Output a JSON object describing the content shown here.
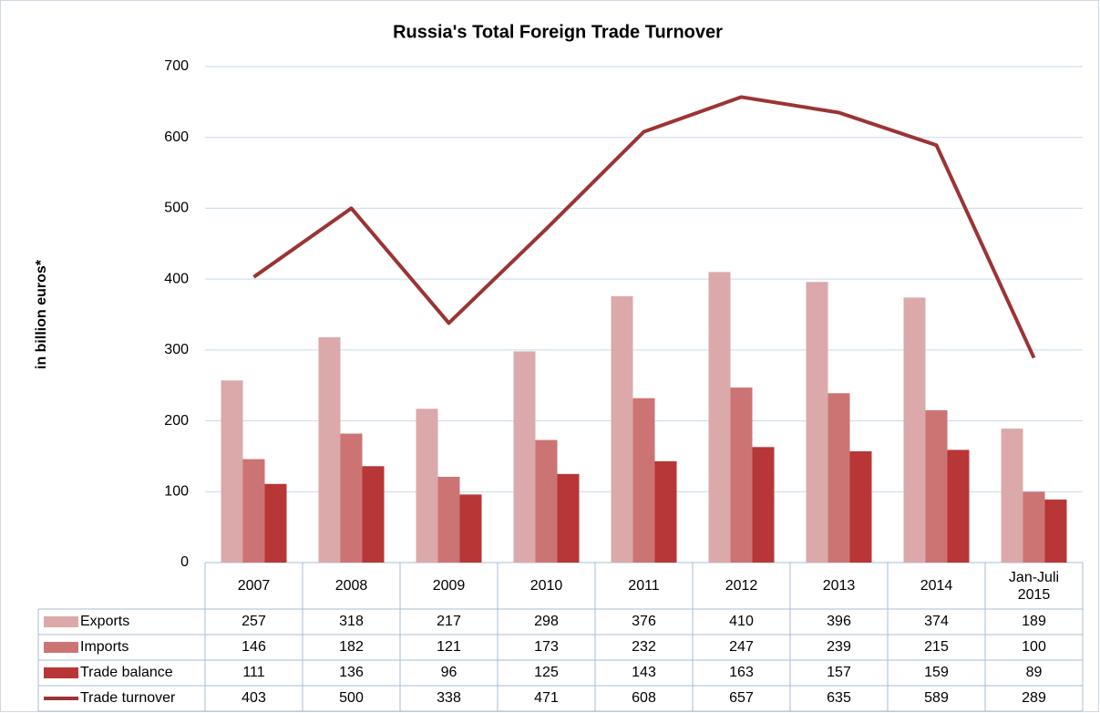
{
  "chart_data": {
    "type": "bar",
    "title": "Russia's Total Foreign Trade Turnover",
    "y_label": "in billion euros*",
    "categories": [
      "2007",
      "2008",
      "2009",
      "2010",
      "2011",
      "2012",
      "2013",
      "2014",
      "Jan-Juli 2015"
    ],
    "series": [
      {
        "name": "Exports",
        "type": "bar",
        "color": "#dba9a9",
        "values": [
          257,
          318,
          217,
          298,
          376,
          410,
          396,
          374,
          189
        ]
      },
      {
        "name": "Imports",
        "type": "bar",
        "color": "#cc7474",
        "values": [
          146,
          182,
          121,
          173,
          232,
          247,
          239,
          215,
          100
        ]
      },
      {
        "name": "Trade balance",
        "type": "bar",
        "color": "#b83636",
        "values": [
          111,
          136,
          96,
          125,
          143,
          163,
          157,
          159,
          89
        ]
      },
      {
        "name": "Trade turnover",
        "type": "line",
        "color": "#9b3434",
        "values": [
          403,
          500,
          338,
          471,
          608,
          657,
          635,
          589,
          289
        ]
      }
    ],
    "ylim": [
      0,
      700
    ],
    "yticks": [
      0,
      100,
      200,
      300,
      400,
      500,
      600,
      700
    ],
    "grid": true
  }
}
